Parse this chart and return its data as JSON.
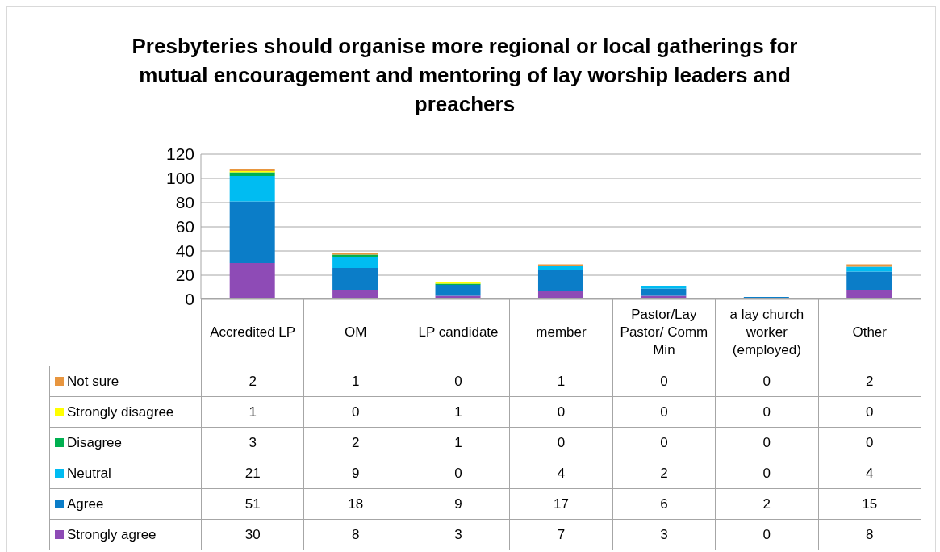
{
  "chart_data": {
    "type": "bar",
    "title": "Presbyteries should organise more regional or local gatherings for mutual encouragement and mentoring of lay worship leaders and preachers",
    "categories": [
      "Accredited LP",
      "OM",
      "LP candidate",
      "member",
      "Pastor/Lay Pastor/ Comm Min",
      "a lay church worker (employed)",
      "Other"
    ],
    "series": [
      {
        "name": "Strongly agree",
        "color": "#8e4bb6",
        "values": [
          30,
          8,
          3,
          7,
          3,
          0,
          8
        ]
      },
      {
        "name": "Agree",
        "color": "#0b7dc8",
        "values": [
          51,
          18,
          9,
          17,
          6,
          2,
          15
        ]
      },
      {
        "name": "Neutral",
        "color": "#00bcf2",
        "values": [
          21,
          9,
          0,
          4,
          2,
          0,
          4
        ]
      },
      {
        "name": "Disagree",
        "color": "#00b050",
        "values": [
          3,
          2,
          1,
          0,
          0,
          0,
          0
        ]
      },
      {
        "name": "Strongly disagree",
        "color": "#ffff00",
        "values": [
          1,
          0,
          1,
          0,
          0,
          0,
          0
        ]
      },
      {
        "name": "Not sure",
        "color": "#e8963f",
        "values": [
          2,
          1,
          0,
          1,
          0,
          0,
          2
        ]
      }
    ],
    "stacked": true,
    "ylim": [
      0,
      120
    ],
    "yticks": [
      0,
      20,
      40,
      60,
      80,
      100,
      120
    ],
    "grid": "y",
    "legend": "bottom",
    "data_labels": true
  }
}
